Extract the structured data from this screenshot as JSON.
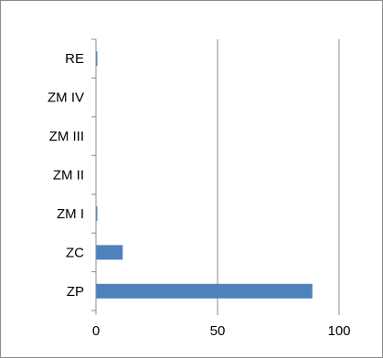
{
  "chart_data": {
    "type": "bar",
    "orientation": "horizontal",
    "categories": [
      "ZP",
      "ZC",
      "ZM I",
      "ZM II",
      "ZM III",
      "ZM IV",
      "RE"
    ],
    "values": [
      89,
      11,
      0.5,
      0,
      0,
      0,
      0.5
    ],
    "title": "",
    "xlabel": "",
    "ylabel": "",
    "xlim": [
      0,
      100
    ],
    "x_ticks": [
      0,
      50,
      100
    ],
    "grid": "vertical major gridlines",
    "legend": "none",
    "bar_color": "#4f81bd",
    "grid_color": "#8c8c8c",
    "axis_color": "#8c8c8c"
  }
}
